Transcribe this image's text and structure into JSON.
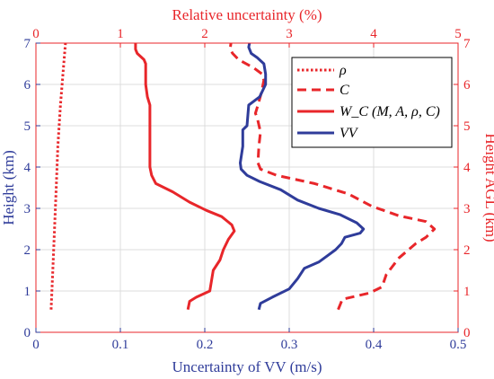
{
  "chart_data": {
    "type": "line",
    "axes": {
      "bottom": {
        "label": "Uncertainty of VV (m/s)",
        "range": [
          0,
          0.5
        ],
        "ticks": [
          "0",
          "0.1",
          "0.2",
          "0.3",
          "0.4",
          "0.5"
        ],
        "tick_values": [
          0,
          0.1,
          0.2,
          0.3,
          0.4,
          0.5
        ],
        "color": "#2f3c9a"
      },
      "top": {
        "label": "Relative uncertainty (%)",
        "range": [
          0,
          5
        ],
        "ticks": [
          "0",
          "1",
          "2",
          "3",
          "4",
          "5"
        ],
        "tick_values": [
          0,
          1,
          2,
          3,
          4,
          5
        ],
        "color": "#e8262a"
      },
      "left": {
        "label": "Height (km)",
        "range": [
          0,
          7
        ],
        "ticks": [
          "0",
          "1",
          "2",
          "3",
          "4",
          "5",
          "6",
          "7"
        ],
        "tick_values": [
          0,
          1,
          2,
          3,
          4,
          5,
          6,
          7
        ],
        "color": "#2f3c9a"
      },
      "right": {
        "label": "Height AGL (km)",
        "range": [
          0,
          7
        ],
        "ticks": [
          "0",
          "1",
          "2",
          "3",
          "4",
          "5",
          "6",
          "7"
        ],
        "tick_values": [
          0,
          1,
          2,
          3,
          4,
          5,
          6,
          7
        ],
        "color": "#e8262a"
      }
    },
    "grid": true,
    "legend_position": "top-right",
    "series": [
      {
        "name": "ρ",
        "color": "#e8262a",
        "dash": "dotted",
        "x_axis": "top",
        "points": [
          [
            0.18,
            0.55
          ],
          [
            0.2,
            1.5
          ],
          [
            0.22,
            2.5
          ],
          [
            0.24,
            3.5
          ],
          [
            0.26,
            4.5
          ],
          [
            0.29,
            5.5
          ],
          [
            0.33,
            6.5
          ],
          [
            0.35,
            7.0
          ]
        ]
      },
      {
        "name": "C",
        "color": "#e8262a",
        "dash": "dashed",
        "x_axis": "top",
        "points": [
          [
            3.58,
            0.55
          ],
          [
            3.63,
            0.8
          ],
          [
            3.95,
            0.95
          ],
          [
            4.1,
            1.1
          ],
          [
            4.15,
            1.4
          ],
          [
            4.3,
            1.8
          ],
          [
            4.5,
            2.15
          ],
          [
            4.62,
            2.3
          ],
          [
            4.72,
            2.5
          ],
          [
            4.62,
            2.68
          ],
          [
            4.3,
            2.82
          ],
          [
            3.98,
            3.05
          ],
          [
            3.7,
            3.35
          ],
          [
            3.3,
            3.6
          ],
          [
            2.85,
            3.8
          ],
          [
            2.66,
            3.95
          ],
          [
            2.63,
            4.1
          ],
          [
            2.64,
            4.5
          ],
          [
            2.66,
            4.85
          ],
          [
            2.62,
            5.2
          ],
          [
            2.6,
            5.3
          ],
          [
            2.63,
            5.5
          ],
          [
            2.67,
            5.8
          ],
          [
            2.7,
            6.1
          ],
          [
            2.68,
            6.25
          ],
          [
            2.58,
            6.4
          ],
          [
            2.4,
            6.6
          ],
          [
            2.33,
            6.75
          ],
          [
            2.3,
            6.85
          ],
          [
            2.31,
            7.0
          ]
        ]
      },
      {
        "name": "W_C (M, A, ρ, C)",
        "color": "#e8262a",
        "dash": "solid",
        "x_axis": "top",
        "points": [
          [
            1.8,
            0.55
          ],
          [
            1.82,
            0.75
          ],
          [
            1.9,
            0.85
          ],
          [
            2.06,
            1.0
          ],
          [
            2.08,
            1.25
          ],
          [
            2.1,
            1.5
          ],
          [
            2.18,
            1.75
          ],
          [
            2.22,
            2.0
          ],
          [
            2.28,
            2.25
          ],
          [
            2.35,
            2.45
          ],
          [
            2.32,
            2.6
          ],
          [
            2.2,
            2.8
          ],
          [
            2.02,
            2.95
          ],
          [
            1.82,
            3.15
          ],
          [
            1.62,
            3.4
          ],
          [
            1.42,
            3.6
          ],
          [
            1.37,
            3.8
          ],
          [
            1.35,
            4.0
          ],
          [
            1.35,
            4.5
          ],
          [
            1.35,
            5.0
          ],
          [
            1.35,
            5.5
          ],
          [
            1.32,
            5.7
          ],
          [
            1.3,
            6.0
          ],
          [
            1.3,
            6.5
          ],
          [
            1.28,
            6.6
          ],
          [
            1.2,
            6.75
          ],
          [
            1.18,
            6.85
          ],
          [
            1.18,
            7.0
          ]
        ]
      },
      {
        "name": "VV",
        "color": "#2f3c9a",
        "dash": "solid",
        "x_axis": "bottom",
        "points": [
          [
            0.264,
            0.55
          ],
          [
            0.266,
            0.7
          ],
          [
            0.28,
            0.85
          ],
          [
            0.3,
            1.05
          ],
          [
            0.31,
            1.3
          ],
          [
            0.318,
            1.55
          ],
          [
            0.335,
            1.7
          ],
          [
            0.345,
            1.85
          ],
          [
            0.355,
            2.0
          ],
          [
            0.362,
            2.15
          ],
          [
            0.366,
            2.3
          ],
          [
            0.384,
            2.4
          ],
          [
            0.388,
            2.5
          ],
          [
            0.38,
            2.65
          ],
          [
            0.36,
            2.85
          ],
          [
            0.335,
            3.0
          ],
          [
            0.31,
            3.2
          ],
          [
            0.29,
            3.45
          ],
          [
            0.265,
            3.65
          ],
          [
            0.25,
            3.8
          ],
          [
            0.243,
            3.95
          ],
          [
            0.242,
            4.1
          ],
          [
            0.245,
            4.5
          ],
          [
            0.245,
            4.9
          ],
          [
            0.25,
            5.0
          ],
          [
            0.252,
            5.5
          ],
          [
            0.265,
            5.7
          ],
          [
            0.272,
            6.0
          ],
          [
            0.272,
            6.25
          ],
          [
            0.27,
            6.5
          ],
          [
            0.262,
            6.65
          ],
          [
            0.255,
            6.75
          ],
          [
            0.252,
            6.9
          ],
          [
            0.253,
            7.0
          ]
        ]
      }
    ]
  }
}
